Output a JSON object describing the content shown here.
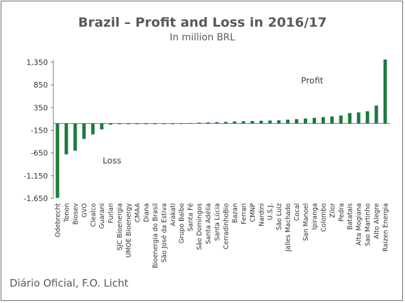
{
  "chart_data": {
    "type": "bar",
    "title": "Brazil – Profit and Loss in 2016/17",
    "subtitle": "In million BRL",
    "source": "Diário Oficial, F.O. Licht",
    "ylim": [
      -1650,
      1400
    ],
    "yticks": [
      "1,350",
      "850",
      "350",
      "-150",
      "-650",
      "-1,150",
      "-1,650"
    ],
    "ytick_values": [
      1350,
      850,
      350,
      -150,
      -650,
      -1150,
      -1650
    ],
    "annotations": [
      {
        "text": "Profit"
      },
      {
        "text": "Loss"
      }
    ],
    "bar_color": "#1a7a3c",
    "categories": [
      "Odebrecht",
      "Tonon",
      "Biosev",
      "GVO",
      "Clealco",
      "Guarani",
      "Furlan",
      "SJC Bioenergia",
      "UMOE Bioenergy",
      "CMAA",
      "Diana",
      "Bioenergia do Brasil",
      "São José da Estiva",
      "Arakati",
      "Grupo Balbo",
      "Santa Fé",
      "São Domingos",
      "Santa Adélia",
      "Santa Lúcia",
      "CerradinhoBio",
      "Bazan",
      "Ferrari",
      "CMNP",
      "Nardini",
      "U.S.J.",
      "São Luiz",
      "Jalles Machado",
      "Cocal",
      "San Manoel",
      "Ipiranga",
      "Colombo",
      "Zilor",
      "Pedra",
      "Batatais",
      "Alta Mogiana",
      "Sao Martinho",
      "Alto Alegre",
      "Raizen Energia"
    ],
    "values": [
      -1640,
      -680,
      -600,
      -340,
      -240,
      -130,
      -25,
      -10,
      -8,
      -6,
      -5,
      -4,
      -3,
      -3,
      5,
      10,
      20,
      25,
      30,
      35,
      45,
      50,
      55,
      60,
      65,
      70,
      85,
      95,
      110,
      125,
      140,
      155,
      175,
      230,
      245,
      270,
      395,
      1410
    ]
  }
}
